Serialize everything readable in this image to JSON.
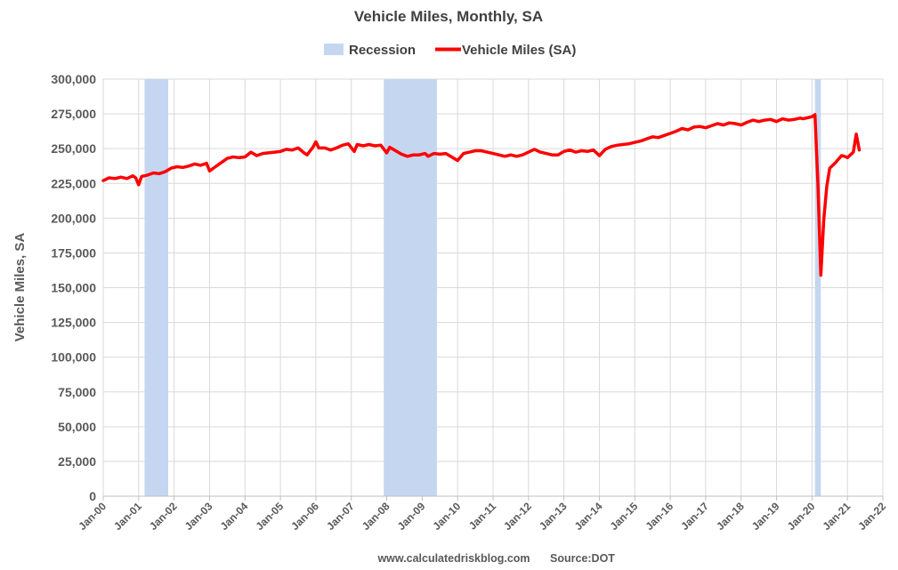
{
  "chart_data": {
    "type": "line",
    "title": "Vehicle Miles, Monthly, SA",
    "ylabel": "Vehicle Miles, SA",
    "xlabel": "",
    "ylim": [
      0,
      300000
    ],
    "yticks": [
      0,
      25000,
      50000,
      75000,
      100000,
      125000,
      150000,
      175000,
      200000,
      225000,
      250000,
      275000,
      300000
    ],
    "ytick_labels": [
      "0",
      "25,000",
      "50,000",
      "75,000",
      "100,000",
      "125,000",
      "150,000",
      "175,000",
      "200,000",
      "225,000",
      "250,000",
      "275,000",
      "300,000"
    ],
    "xlim": [
      "2000-01",
      "2022-01"
    ],
    "xtick_labels": [
      "Jan-00",
      "Jan-01",
      "Jan-02",
      "Jan-03",
      "Jan-04",
      "Jan-05",
      "Jan-06",
      "Jan-07",
      "Jan-08",
      "Jan-09",
      "Jan-10",
      "Jan-11",
      "Jan-12",
      "Jan-13",
      "Jan-14",
      "Jan-15",
      "Jan-16",
      "Jan-17",
      "Jan-18",
      "Jan-19",
      "Jan-20",
      "Jan-21",
      "Jan-22"
    ],
    "grid": true,
    "legend_placement": "top-center",
    "legend": [
      "Recession",
      "Vehicle Miles (SA)"
    ],
    "colors": {
      "series": "#ff0000",
      "recession": "#c5d6f0",
      "grid": "#d9d9d9",
      "text": "#404040"
    },
    "recessions": [
      {
        "start": "2001-03",
        "end": "2001-11"
      },
      {
        "start": "2007-12",
        "end": "2009-06"
      },
      {
        "start": "2020-02",
        "end": "2020-04"
      }
    ],
    "series": [
      {
        "name": "Vehicle Miles (SA)",
        "points": [
          [
            "2000-01",
            227000
          ],
          [
            "2000-03",
            229000
          ],
          [
            "2000-05",
            228500
          ],
          [
            "2000-07",
            229500
          ],
          [
            "2000-09",
            228500
          ],
          [
            "2000-11",
            230500
          ],
          [
            "2000-12",
            229000
          ],
          [
            "2001-01",
            224000
          ],
          [
            "2001-02",
            230000
          ],
          [
            "2001-04",
            231000
          ],
          [
            "2001-06",
            232500
          ],
          [
            "2001-08",
            232000
          ],
          [
            "2001-10",
            233500
          ],
          [
            "2001-12",
            236000
          ],
          [
            "2002-02",
            237000
          ],
          [
            "2002-04",
            236500
          ],
          [
            "2002-06",
            237500
          ],
          [
            "2002-08",
            239000
          ],
          [
            "2002-10",
            238000
          ],
          [
            "2002-12",
            239500
          ],
          [
            "2003-01",
            234000
          ],
          [
            "2003-03",
            237000
          ],
          [
            "2003-05",
            240000
          ],
          [
            "2003-07",
            243000
          ],
          [
            "2003-09",
            244000
          ],
          [
            "2003-11",
            243500
          ],
          [
            "2004-01",
            244000
          ],
          [
            "2004-03",
            247500
          ],
          [
            "2004-05",
            245000
          ],
          [
            "2004-07",
            246500
          ],
          [
            "2004-09",
            247000
          ],
          [
            "2004-11",
            247500
          ],
          [
            "2005-01",
            248000
          ],
          [
            "2005-03",
            249500
          ],
          [
            "2005-05",
            249000
          ],
          [
            "2005-07",
            250500
          ],
          [
            "2005-09",
            247000
          ],
          [
            "2005-10",
            245500
          ],
          [
            "2005-12",
            251000
          ],
          [
            "2006-01",
            255000
          ],
          [
            "2006-02",
            250500
          ],
          [
            "2006-04",
            250500
          ],
          [
            "2006-06",
            249000
          ],
          [
            "2006-08",
            250500
          ],
          [
            "2006-10",
            252500
          ],
          [
            "2006-12",
            253500
          ],
          [
            "2007-02",
            248000
          ],
          [
            "2007-03",
            253000
          ],
          [
            "2007-05",
            252000
          ],
          [
            "2007-07",
            253000
          ],
          [
            "2007-09",
            252000
          ],
          [
            "2007-11",
            252500
          ],
          [
            "2008-01",
            247000
          ],
          [
            "2008-02",
            251000
          ],
          [
            "2008-04",
            248500
          ],
          [
            "2008-06",
            246000
          ],
          [
            "2008-08",
            244500
          ],
          [
            "2008-10",
            245500
          ],
          [
            "2008-12",
            245500
          ],
          [
            "2009-02",
            246500
          ],
          [
            "2009-03",
            244500
          ],
          [
            "2009-05",
            246500
          ],
          [
            "2009-07",
            246000
          ],
          [
            "2009-09",
            246500
          ],
          [
            "2009-11",
            244000
          ],
          [
            "2010-01",
            241500
          ],
          [
            "2010-03",
            246500
          ],
          [
            "2010-05",
            247500
          ],
          [
            "2010-07",
            248500
          ],
          [
            "2010-09",
            248500
          ],
          [
            "2010-11",
            247500
          ],
          [
            "2011-01",
            246500
          ],
          [
            "2011-03",
            245500
          ],
          [
            "2011-05",
            244500
          ],
          [
            "2011-07",
            245500
          ],
          [
            "2011-09",
            244500
          ],
          [
            "2011-11",
            245500
          ],
          [
            "2012-01",
            247500
          ],
          [
            "2012-03",
            249500
          ],
          [
            "2012-05",
            247500
          ],
          [
            "2012-07",
            246500
          ],
          [
            "2012-09",
            245500
          ],
          [
            "2012-11",
            245500
          ],
          [
            "2013-01",
            248000
          ],
          [
            "2013-03",
            249000
          ],
          [
            "2013-05",
            247500
          ],
          [
            "2013-07",
            248500
          ],
          [
            "2013-09",
            248000
          ],
          [
            "2013-11",
            249000
          ],
          [
            "2014-01",
            245000
          ],
          [
            "2014-03",
            249500
          ],
          [
            "2014-05",
            251500
          ],
          [
            "2014-07",
            252500
          ],
          [
            "2014-09",
            253000
          ],
          [
            "2014-11",
            253500
          ],
          [
            "2015-01",
            254500
          ],
          [
            "2015-03",
            255500
          ],
          [
            "2015-05",
            257000
          ],
          [
            "2015-07",
            258500
          ],
          [
            "2015-09",
            258000
          ],
          [
            "2015-11",
            259500
          ],
          [
            "2016-01",
            261000
          ],
          [
            "2016-03",
            262500
          ],
          [
            "2016-05",
            264500
          ],
          [
            "2016-07",
            263500
          ],
          [
            "2016-09",
            265500
          ],
          [
            "2016-11",
            266000
          ],
          [
            "2017-01",
            265000
          ],
          [
            "2017-03",
            266500
          ],
          [
            "2017-05",
            268000
          ],
          [
            "2017-07",
            267000
          ],
          [
            "2017-09",
            268500
          ],
          [
            "2017-11",
            268000
          ],
          [
            "2018-01",
            267000
          ],
          [
            "2018-03",
            269000
          ],
          [
            "2018-05",
            270500
          ],
          [
            "2018-07",
            269500
          ],
          [
            "2018-09",
            270500
          ],
          [
            "2018-11",
            271000
          ],
          [
            "2019-01",
            269500
          ],
          [
            "2019-03",
            271500
          ],
          [
            "2019-05",
            270500
          ],
          [
            "2019-07",
            271000
          ],
          [
            "2019-09",
            272000
          ],
          [
            "2019-10",
            271500
          ],
          [
            "2019-12",
            272500
          ],
          [
            "2020-01",
            273000
          ],
          [
            "2020-02",
            274500
          ],
          [
            "2020-03",
            225000
          ],
          [
            "2020-04",
            159000
          ],
          [
            "2020-05",
            199000
          ],
          [
            "2020-06",
            223000
          ],
          [
            "2020-07",
            236000
          ],
          [
            "2020-09",
            240000
          ],
          [
            "2020-11",
            245000
          ],
          [
            "2020-12",
            244500
          ],
          [
            "2021-01",
            243500
          ],
          [
            "2021-02",
            245500
          ],
          [
            "2021-03",
            247500
          ],
          [
            "2021-04",
            260500
          ],
          [
            "2021-05",
            249000
          ]
        ]
      }
    ]
  },
  "footer": {
    "website": "www.calculatedriskblog.com",
    "source": "Source:DOT"
  }
}
